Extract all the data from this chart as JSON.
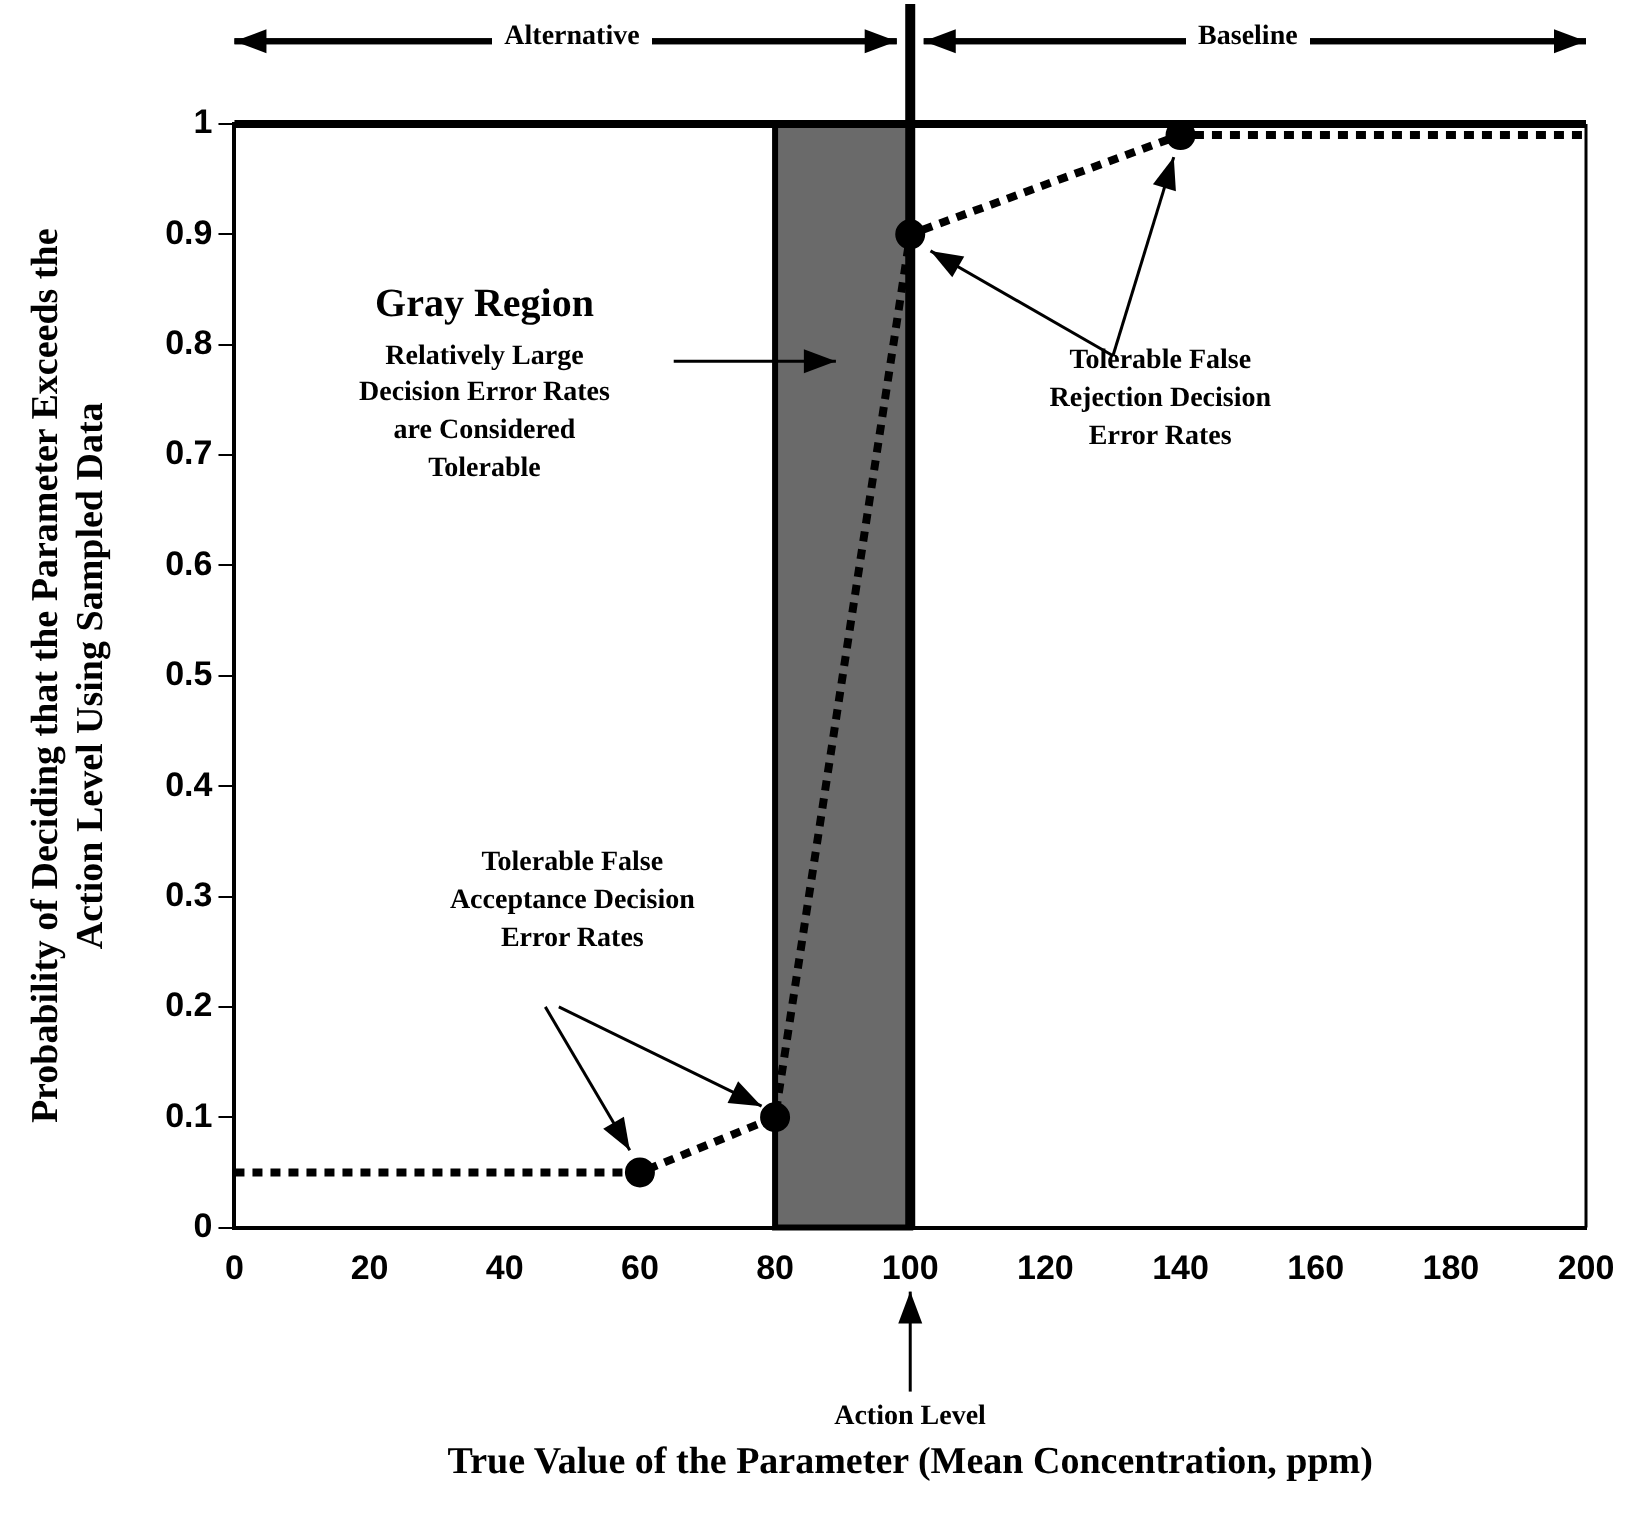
{
  "chart_data": {
    "type": "line",
    "xlabel": "True Value of the Parameter (Mean Concentration, ppm)",
    "ylabel": "Probability of Deciding that the Parameter Exceeds the Action Level Using Sampled Data",
    "series": [
      {
        "type": "line",
        "color": "#000000",
        "line_style": "dotted",
        "marker": "none",
        "x": [
          0,
          60,
          80,
          100,
          140,
          200
        ],
        "values": [
          0.05,
          0.05,
          0.1,
          0.9,
          0.99,
          0.99
        ]
      },
      {
        "type": "scatter",
        "color": "#000000",
        "marker": "circle",
        "x": [
          60,
          80,
          100,
          140
        ],
        "values": [
          0.05,
          0.1,
          0.9,
          0.99
        ]
      }
    ],
    "xlim": [
      0,
      200
    ],
    "xticks": [
      0,
      20,
      40,
      60,
      80,
      100,
      120,
      140,
      160,
      180,
      200
    ],
    "ylim": [
      0,
      1
    ],
    "yticks": [
      0,
      0.1,
      0.2,
      0.3,
      0.4,
      0.5,
      0.6,
      0.7,
      0.8,
      0.9,
      1
    ],
    "grid": false,
    "legend": false,
    "ref_lines": [
      {
        "axis": "x",
        "value": 100,
        "label": "Action Level",
        "color": "#000000"
      }
    ],
    "bands": [
      {
        "axis": "x",
        "from": 80,
        "to": 100,
        "color": "#6a6a6a"
      }
    ],
    "annotations": [
      "Alternative",
      "Baseline",
      "Gray Region",
      "Relatively Large Decision Error Rates are Considered Tolerable",
      "Tolerable False Rejection Decision Error Rates",
      "Tolerable False Acceptance Decision Error Rates"
    ]
  }
}
